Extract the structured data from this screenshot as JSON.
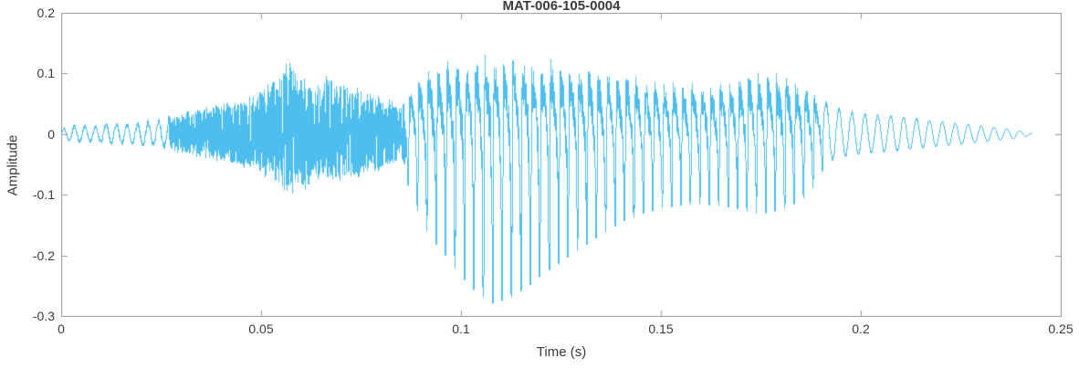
{
  "figure": {
    "title": "MAT-006-105-0004",
    "xlabel": "Time (s)",
    "ylabel": "Amplitude"
  },
  "chart_data": {
    "type": "line",
    "title": "MAT-006-105-0004",
    "xlabel": "Time (s)",
    "ylabel": "Amplitude",
    "xlim": [
      0,
      0.25
    ],
    "ylim": [
      -0.3,
      0.2
    ],
    "xticks": [
      0,
      0.05,
      0.1,
      0.15,
      0.2,
      0.25
    ],
    "xtick_labels": [
      "0",
      "0.05",
      "0.1",
      "0.15",
      "0.2",
      "0.25"
    ],
    "yticks": [
      -0.3,
      -0.2,
      -0.1,
      0,
      0.1,
      0.2
    ],
    "ytick_labels": [
      "-0.3",
      "-0.2",
      "-0.1",
      "0",
      "0.1",
      "0.2"
    ],
    "grid": false,
    "legend": null,
    "line_color": "#4DBEEE",
    "axis_color": "#9a9a9a",
    "text_color": "#3b3b3b",
    "seed": 20240,
    "signal": {
      "description": "speech-like waveform: low hum, noisy fricative burst, strong voiced vowel with pitch pulses (pos peaks ~0.2, neg peaks ~-0.25 near t=0.108), then decaying tail ending ~0.2425 s",
      "t_end": 0.2425,
      "envelope": [
        [
          0.0,
          0.01,
          0.01
        ],
        [
          0.004,
          0.018,
          0.016
        ],
        [
          0.008,
          0.014,
          0.014
        ],
        [
          0.012,
          0.02,
          0.018
        ],
        [
          0.016,
          0.018,
          0.018
        ],
        [
          0.02,
          0.022,
          0.02
        ],
        [
          0.025,
          0.026,
          0.024
        ],
        [
          0.03,
          0.038,
          0.036
        ],
        [
          0.036,
          0.048,
          0.046
        ],
        [
          0.042,
          0.058,
          0.052
        ],
        [
          0.048,
          0.07,
          0.065
        ],
        [
          0.053,
          0.095,
          0.085
        ],
        [
          0.057,
          0.135,
          0.115
        ],
        [
          0.06,
          0.11,
          0.105
        ],
        [
          0.063,
          0.088,
          0.085
        ],
        [
          0.066,
          0.105,
          0.095
        ],
        [
          0.07,
          0.092,
          0.085
        ],
        [
          0.075,
          0.082,
          0.075
        ],
        [
          0.08,
          0.072,
          0.065
        ],
        [
          0.085,
          0.05,
          0.045
        ],
        [
          0.088,
          0.125,
          0.1
        ],
        [
          0.091,
          0.155,
          0.14
        ],
        [
          0.094,
          0.17,
          0.165
        ],
        [
          0.097,
          0.18,
          0.185
        ],
        [
          0.1,
          0.188,
          0.21
        ],
        [
          0.104,
          0.198,
          0.235
        ],
        [
          0.108,
          0.195,
          0.25
        ],
        [
          0.112,
          0.19,
          0.242
        ],
        [
          0.116,
          0.186,
          0.228
        ],
        [
          0.12,
          0.182,
          0.208
        ],
        [
          0.125,
          0.176,
          0.188
        ],
        [
          0.13,
          0.17,
          0.168
        ],
        [
          0.135,
          0.16,
          0.148
        ],
        [
          0.14,
          0.15,
          0.13
        ],
        [
          0.145,
          0.14,
          0.118
        ],
        [
          0.15,
          0.132,
          0.11
        ],
        [
          0.155,
          0.126,
          0.105
        ],
        [
          0.16,
          0.126,
          0.104
        ],
        [
          0.165,
          0.132,
          0.106
        ],
        [
          0.17,
          0.142,
          0.112
        ],
        [
          0.175,
          0.156,
          0.118
        ],
        [
          0.18,
          0.15,
          0.112
        ],
        [
          0.185,
          0.132,
          0.098
        ],
        [
          0.188,
          0.1,
          0.078
        ],
        [
          0.191,
          0.055,
          0.048
        ],
        [
          0.195,
          0.042,
          0.04
        ],
        [
          0.2,
          0.036,
          0.034
        ],
        [
          0.21,
          0.03,
          0.028
        ],
        [
          0.22,
          0.022,
          0.021
        ],
        [
          0.23,
          0.014,
          0.014
        ],
        [
          0.238,
          0.008,
          0.008
        ],
        [
          0.2425,
          0.002,
          0.002
        ]
      ],
      "segments": [
        {
          "t0": 0.0,
          "t1": 0.027,
          "f": 380,
          "noise": 0.18,
          "timbre": "sine"
        },
        {
          "t0": 0.027,
          "t1": 0.086,
          "f": 950,
          "noise": 0.9,
          "timbre": "noise"
        },
        {
          "t0": 0.086,
          "t1": 0.1905,
          "f": 425,
          "noise": 0.16,
          "timbre": "voiced"
        },
        {
          "t0": 0.1905,
          "t1": 0.2425,
          "f": 310,
          "noise": 0.07,
          "timbre": "sine"
        }
      ]
    }
  }
}
